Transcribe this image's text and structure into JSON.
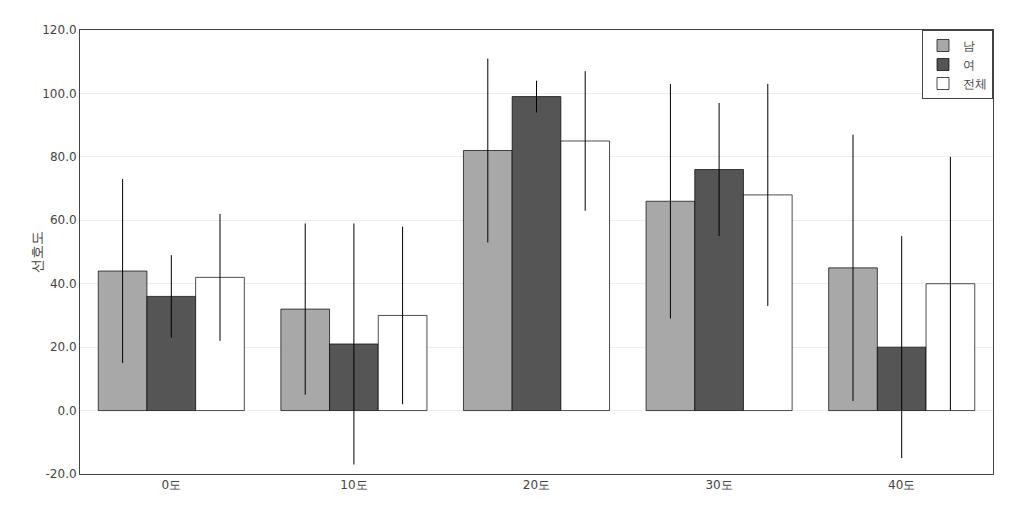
{
  "chart_data": {
    "type": "bar",
    "categories": [
      "0도",
      "10도",
      "20도",
      "30도",
      "40도"
    ],
    "series": [
      {
        "name": "남",
        "values": [
          44,
          32,
          82,
          66,
          45
        ],
        "errors": [
          29,
          27,
          29,
          37,
          42
        ],
        "color": "#a8a8a8"
      },
      {
        "name": "여",
        "values": [
          36,
          21,
          99,
          76,
          20
        ],
        "errors": [
          13,
          38,
          5,
          21,
          35
        ],
        "color": "#555555"
      },
      {
        "name": "전체",
        "values": [
          42,
          30,
          85,
          68,
          40
        ],
        "errors": [
          20,
          28,
          22,
          35,
          40
        ],
        "color": "#ffffff"
      }
    ],
    "ylabel": "선호도",
    "ylim": [
      -20,
      120
    ],
    "yticks": [
      {
        "value": -20,
        "label": "-20.0"
      },
      {
        "value": 0,
        "label": "0.0"
      },
      {
        "value": 20,
        "label": "20.0"
      },
      {
        "value": 40,
        "label": "40.0"
      },
      {
        "value": 60,
        "label": "60.0"
      },
      {
        "value": 80,
        "label": "80.0"
      },
      {
        "value": 100,
        "label": "100.0"
      },
      {
        "value": 120,
        "label": "120.0"
      }
    ],
    "grid": true,
    "legend": "upper right"
  }
}
